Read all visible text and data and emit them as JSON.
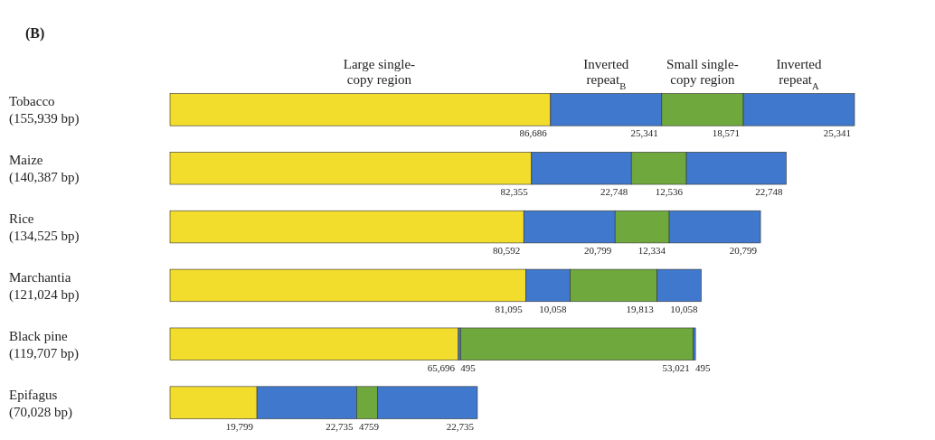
{
  "chart_data": {
    "type": "bar",
    "orientation": "horizontal",
    "stacked": true,
    "title": "(B)",
    "categories": [
      "Tobacco (155,939 bp)",
      "Maize (140,387 bp)",
      "Rice (134,525 bp)",
      "Marchantia (121,024 bp)",
      "Black pine (119,707 bp)",
      "Epifagus (70,028 bp)"
    ],
    "series": [
      {
        "name": "Large single-copy region",
        "color": "#f2dc2c",
        "values": [
          86686,
          82355,
          80592,
          81095,
          65696,
          19799
        ],
        "value_labels": [
          "86,686",
          "82,355",
          "80,592",
          "81,095",
          "65,696",
          "19,799"
        ]
      },
      {
        "name": "Inverted repeat$_{B}$",
        "color": "#3f78cc",
        "values": [
          25341,
          22748,
          20799,
          10058,
          495,
          22735
        ],
        "value_labels": [
          "25,341",
          "22,748",
          "20,799",
          "10,058",
          "495",
          "22,735"
        ]
      },
      {
        "name": "Small single-copy region",
        "color": "#6fa83c",
        "values": [
          18571,
          12536,
          12334,
          19813,
          53021,
          4759
        ],
        "value_labels": [
          "18,571",
          "12,536",
          "12,334",
          "19,813",
          "53,021",
          "4759"
        ]
      },
      {
        "name": "Inverted repeat$_{A}$",
        "color": "#3f78cc",
        "values": [
          25341,
          22748,
          20799,
          10058,
          495,
          22735
        ],
        "value_labels": [
          "25,341",
          "22,748",
          "20,799",
          "10,058",
          "495",
          "22,735"
        ]
      }
    ]
  }
}
